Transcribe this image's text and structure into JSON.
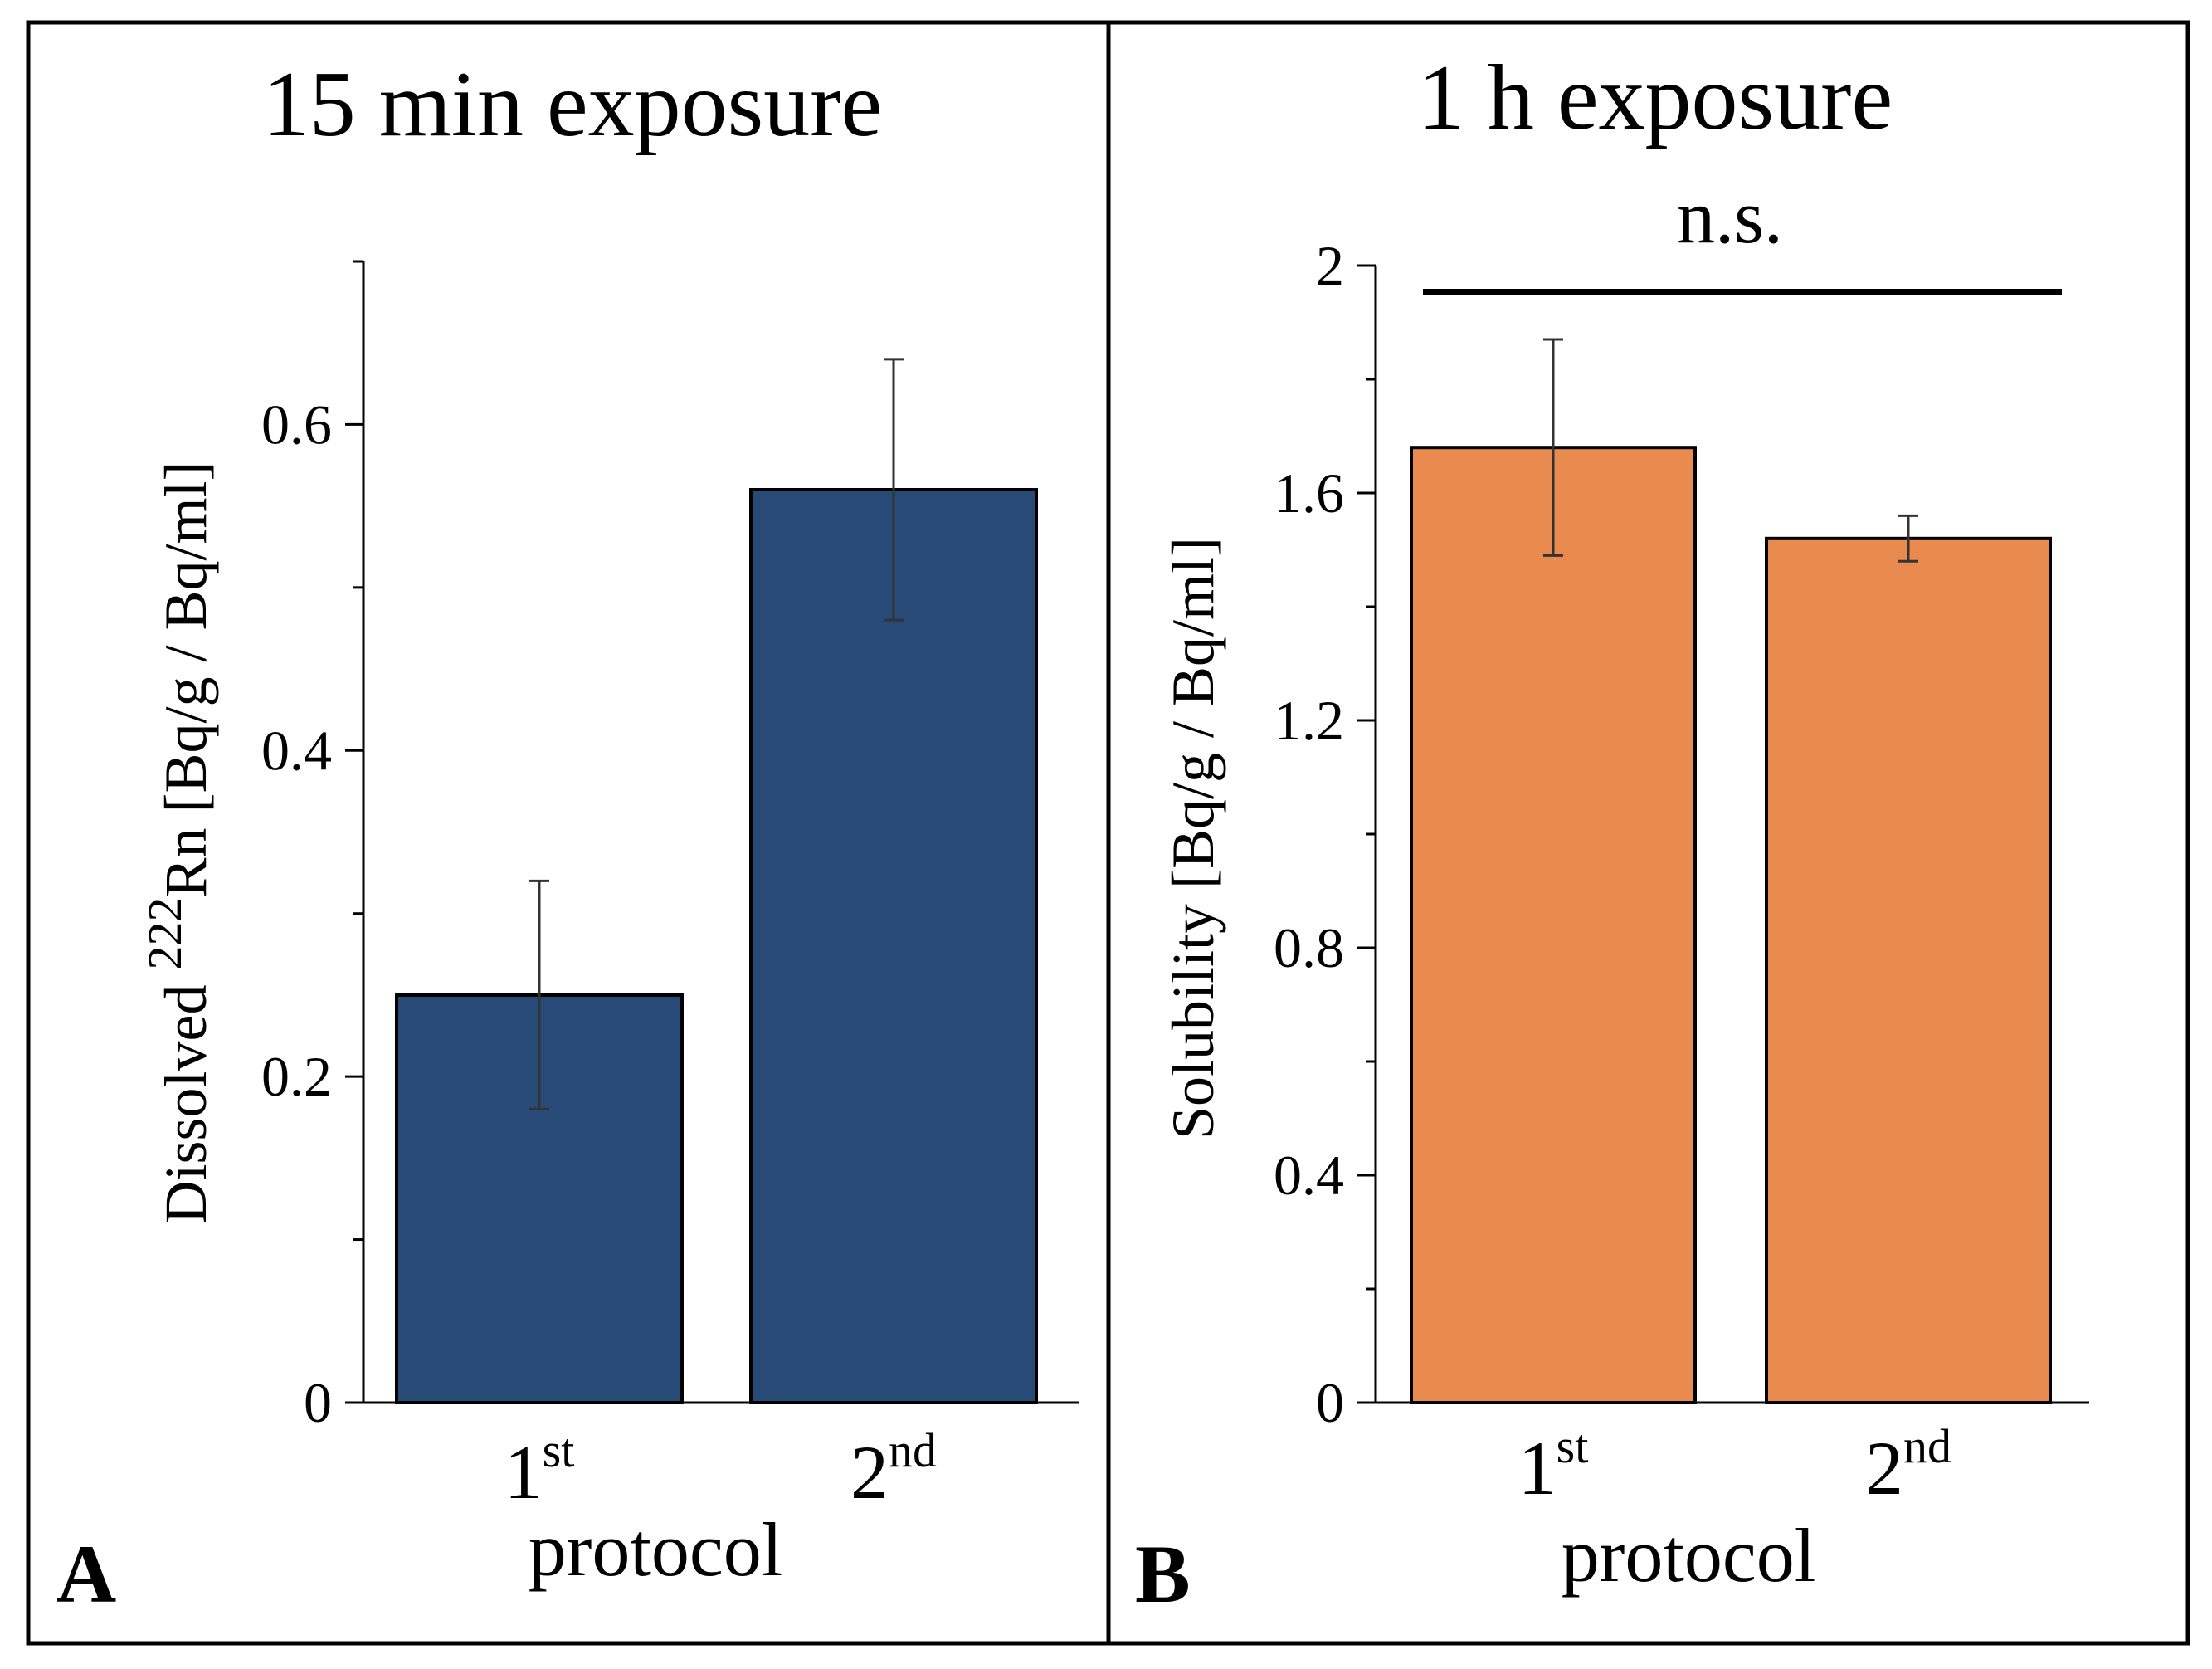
{
  "chart_data": [
    {
      "type": "bar",
      "panel_label": "A",
      "title": "15 min exposure",
      "xlabel": "protocol",
      "ylabel": {
        "prefix": "Dissolved ",
        "sup": "222",
        "suffix": "Rn [Bq/g / Bq/ml]"
      },
      "categories": [
        {
          "base": "1",
          "sup": "st"
        },
        {
          "base": "2",
          "sup": "nd"
        }
      ],
      "values": [
        0.25,
        0.56
      ],
      "errors": [
        0.07,
        0.08
      ],
      "ylim": [
        0,
        0.7
      ],
      "yticks": [
        0,
        0.2,
        0.4,
        0.6
      ],
      "ytick_labels": [
        "0",
        "0.2",
        "0.4",
        "0.6"
      ],
      "minor_step": 0.1,
      "bar_color": "#274A77",
      "annotation": null
    },
    {
      "type": "bar",
      "panel_label": "B",
      "title": "1 h exposure",
      "xlabel": "protocol",
      "ylabel": {
        "prefix": "Solubility [Bq/g / Bq/ml]",
        "sup": "",
        "suffix": ""
      },
      "categories": [
        {
          "base": "1",
          "sup": "st"
        },
        {
          "base": "2",
          "sup": "nd"
        }
      ],
      "values": [
        1.68,
        1.52
      ],
      "errors": [
        0.19,
        0.04
      ],
      "ylim": [
        0,
        2.0
      ],
      "yticks": [
        0,
        0.4,
        0.8,
        1.2,
        1.6,
        2.0
      ],
      "ytick_labels": [
        "0",
        "0.4",
        "0.8",
        "1.2",
        "1.6",
        "2"
      ],
      "minor_step": 0.2,
      "bar_color": "#E98A4E",
      "annotation": "n.s."
    }
  ]
}
